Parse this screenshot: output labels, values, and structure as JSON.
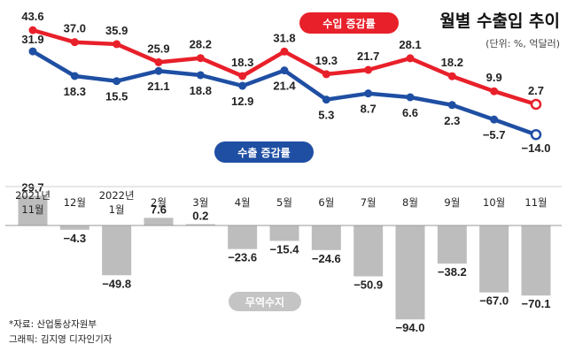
{
  "chart_data": {
    "type": "line",
    "title": "월별 수출입 추이",
    "unit_label": "(단위: %, 억달러)",
    "categories": [
      [
        "2021년",
        "11월"
      ],
      [
        "12월"
      ],
      [
        "2022년",
        "1월"
      ],
      [
        "2월"
      ],
      [
        "3월"
      ],
      [
        "4월"
      ],
      [
        "5월"
      ],
      [
        "6월"
      ],
      [
        "7월"
      ],
      [
        "8월"
      ],
      [
        "9월"
      ],
      [
        "10월"
      ],
      [
        "11월"
      ]
    ],
    "series": [
      {
        "name": "수입 증감률",
        "color": "#e8202a",
        "values": [
          43.6,
          37.0,
          35.9,
          25.9,
          28.2,
          18.3,
          31.8,
          19.3,
          21.7,
          28.1,
          18.2,
          9.9,
          2.7
        ],
        "labels": [
          "43.6",
          "37.0",
          "35.9",
          "25.9",
          "28.2",
          "18.3",
          "31.8",
          "19.3",
          "21.7",
          "28.1",
          "18.2",
          "9.9",
          "2.7"
        ]
      },
      {
        "name": "수출 증감률",
        "color": "#1f4fa3",
        "values": [
          31.9,
          18.3,
          15.5,
          21.1,
          18.8,
          12.9,
          21.4,
          5.3,
          8.7,
          6.6,
          2.3,
          -5.7,
          -14.0
        ],
        "labels": [
          "31.9",
          "18.3",
          "15.5",
          "21.1",
          "18.8",
          "12.9",
          "21.4",
          "5.3",
          "8.7",
          "6.6",
          "2.3",
          "−5.7",
          "−14.0"
        ]
      }
    ],
    "bar_series": {
      "name": "무역수지",
      "color": "#bdbdbd",
      "values": [
        29.7,
        -4.3,
        -49.8,
        7.6,
        0.2,
        -23.6,
        -15.4,
        -24.6,
        -50.9,
        -94.0,
        -38.2,
        -67.0,
        -70.1
      ],
      "labels": [
        "29.7",
        "−4.3",
        "−49.8",
        "7.6",
        "0.2",
        "−23.6",
        "−15.4",
        "−24.6",
        "−50.9",
        "−94.0",
        "−38.2",
        "−67.0",
        "−70.1"
      ]
    },
    "source": "*자료: 산업통상자원부",
    "credit": "그래픽: 김지영 디자인기자"
  }
}
